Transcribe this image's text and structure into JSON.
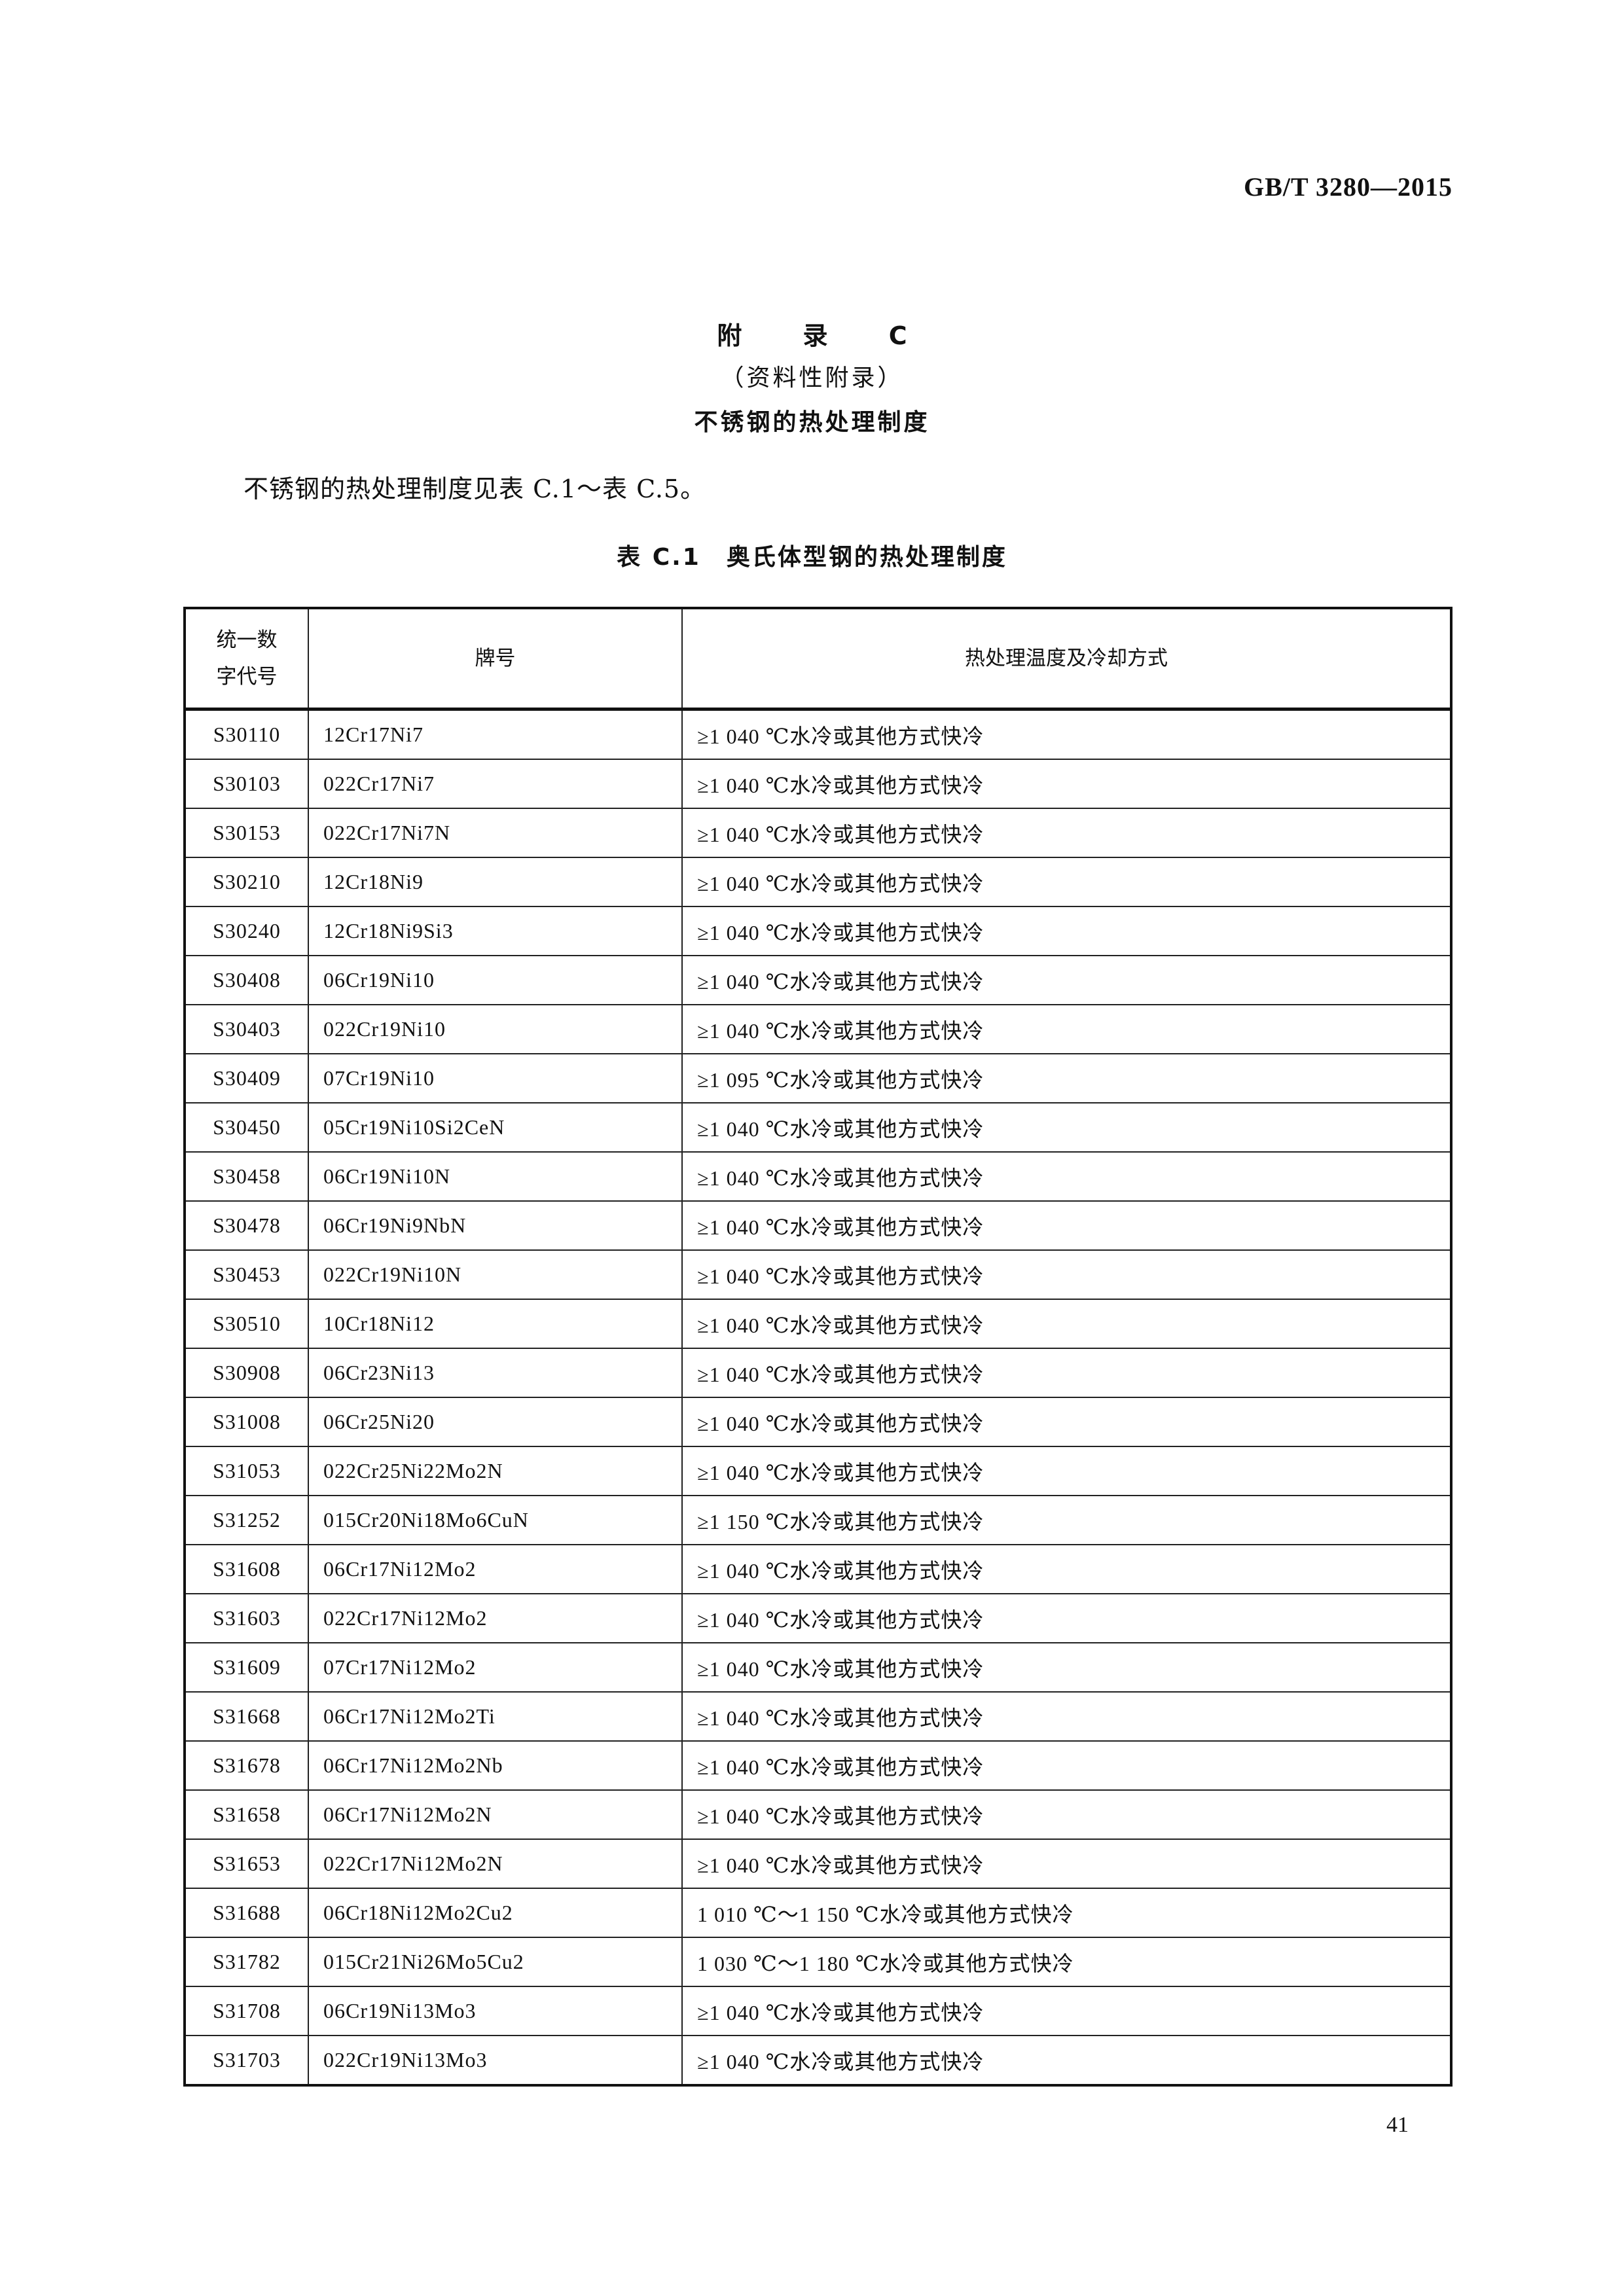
{
  "header": {
    "standard_code": "GB/T 3280—2015"
  },
  "appendix": {
    "title": "附 录 C",
    "type": "（资料性附录）",
    "heading": "不锈钢的热处理制度"
  },
  "intro": "不锈钢的热处理制度见表 C.1～表 C.5。",
  "table": {
    "caption": "表 C.1　奥氏体型钢的热处理制度",
    "headers": [
      "统一数\n字代号",
      "牌号",
      "热处理温度及冷却方式"
    ],
    "rows": [
      [
        "S30110",
        "12Cr17Ni7",
        "≥1 040 ℃水冷或其他方式快冷"
      ],
      [
        "S30103",
        "022Cr17Ni7",
        "≥1 040 ℃水冷或其他方式快冷"
      ],
      [
        "S30153",
        "022Cr17Ni7N",
        "≥1 040 ℃水冷或其他方式快冷"
      ],
      [
        "S30210",
        "12Cr18Ni9",
        "≥1 040 ℃水冷或其他方式快冷"
      ],
      [
        "S30240",
        "12Cr18Ni9Si3",
        "≥1 040 ℃水冷或其他方式快冷"
      ],
      [
        "S30408",
        "06Cr19Ni10",
        "≥1 040 ℃水冷或其他方式快冷"
      ],
      [
        "S30403",
        "022Cr19Ni10",
        "≥1 040 ℃水冷或其他方式快冷"
      ],
      [
        "S30409",
        "07Cr19Ni10",
        "≥1 095 ℃水冷或其他方式快冷"
      ],
      [
        "S30450",
        "05Cr19Ni10Si2CeN",
        "≥1 040 ℃水冷或其他方式快冷"
      ],
      [
        "S30458",
        "06Cr19Ni10N",
        "≥1 040 ℃水冷或其他方式快冷"
      ],
      [
        "S30478",
        "06Cr19Ni9NbN",
        "≥1 040 ℃水冷或其他方式快冷"
      ],
      [
        "S30453",
        "022Cr19Ni10N",
        "≥1 040 ℃水冷或其他方式快冷"
      ],
      [
        "S30510",
        "10Cr18Ni12",
        "≥1 040 ℃水冷或其他方式快冷"
      ],
      [
        "S30908",
        "06Cr23Ni13",
        "≥1 040 ℃水冷或其他方式快冷"
      ],
      [
        "S31008",
        "06Cr25Ni20",
        "≥1 040 ℃水冷或其他方式快冷"
      ],
      [
        "S31053",
        "022Cr25Ni22Mo2N",
        "≥1 040 ℃水冷或其他方式快冷"
      ],
      [
        "S31252",
        "015Cr20Ni18Mo6CuN",
        "≥1 150 ℃水冷或其他方式快冷"
      ],
      [
        "S31608",
        "06Cr17Ni12Mo2",
        "≥1 040 ℃水冷或其他方式快冷"
      ],
      [
        "S31603",
        "022Cr17Ni12Mo2",
        "≥1 040 ℃水冷或其他方式快冷"
      ],
      [
        "S31609",
        "07Cr17Ni12Mo2",
        "≥1 040 ℃水冷或其他方式快冷"
      ],
      [
        "S31668",
        "06Cr17Ni12Mo2Ti",
        "≥1 040 ℃水冷或其他方式快冷"
      ],
      [
        "S31678",
        "06Cr17Ni12Mo2Nb",
        "≥1 040 ℃水冷或其他方式快冷"
      ],
      [
        "S31658",
        "06Cr17Ni12Mo2N",
        "≥1 040 ℃水冷或其他方式快冷"
      ],
      [
        "S31653",
        "022Cr17Ni12Mo2N",
        "≥1 040 ℃水冷或其他方式快冷"
      ],
      [
        "S31688",
        "06Cr18Ni12Mo2Cu2",
        "1 010 ℃～1 150 ℃水冷或其他方式快冷"
      ],
      [
        "S31782",
        "015Cr21Ni26Mo5Cu2",
        "1 030 ℃～1 180 ℃水冷或其他方式快冷"
      ],
      [
        "S31708",
        "06Cr19Ni13Mo3",
        "≥1 040 ℃水冷或其他方式快冷"
      ],
      [
        "S31703",
        "022Cr19Ni13Mo3",
        "≥1 040 ℃水冷或其他方式快冷"
      ]
    ]
  },
  "footer": {
    "page_number": "41"
  }
}
